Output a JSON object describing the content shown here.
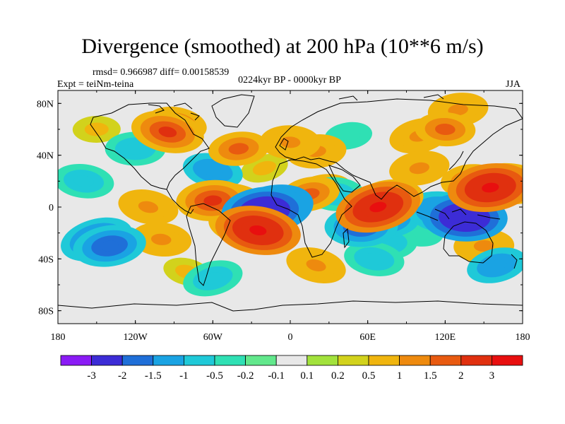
{
  "title": "Divergence (smoothed) at 200 hPa (10**6 m/s)",
  "stats": "rmsd= 0.966987 diff= 0.00158539",
  "experiment": "Expt = teiNm-teina",
  "period": "0224kyr BP - 0000kyr BP",
  "season": "JJA",
  "map": {
    "lat_range": [
      -90,
      90
    ],
    "lon_range": [
      -180,
      180
    ],
    "y_ticks": [
      "80N",
      "40N",
      "0",
      "40S",
      "80S"
    ],
    "y_tick_values": [
      80,
      40,
      0,
      -40,
      -80
    ],
    "x_ticks": [
      "180",
      "120W",
      "60W",
      "0",
      "60E",
      "120E",
      "180"
    ],
    "x_tick_values": [
      -180,
      -120,
      -60,
      0,
      60,
      120,
      180
    ]
  },
  "colorbar": {
    "labels": [
      "-3",
      "-2",
      "-1.5",
      "-1",
      "-0.5",
      "-0.2",
      "-0.1",
      "0.1",
      "0.2",
      "0.5",
      "1",
      "1.5",
      "2",
      "3"
    ],
    "colors": [
      "#8a1bf5",
      "#3c2cd6",
      "#1f6fd8",
      "#1aa3e3",
      "#1fc9d8",
      "#2fe0b4",
      "#62e88c",
      "#e8e8e8",
      "#a2e23c",
      "#d2d21c",
      "#f0b50e",
      "#ee8a0e",
      "#e85a10",
      "#e0300f",
      "#e80f0f"
    ]
  },
  "anomalies": [
    {
      "lon": -15,
      "lat": -2,
      "value": -3
    },
    {
      "lon": -20,
      "lat": -3,
      "value": -3
    },
    {
      "lon": 72,
      "lat": -8,
      "value": -2
    },
    {
      "lon": 135,
      "lat": -8,
      "value": -3
    },
    {
      "lon": 118,
      "lat": -4,
      "value": -2
    },
    {
      "lon": -150,
      "lat": -25,
      "value": -2
    },
    {
      "lon": -140,
      "lat": -30,
      "value": -2
    },
    {
      "lon": 55,
      "lat": -15,
      "value": -2
    },
    {
      "lon": -60,
      "lat": 28,
      "value": -1.5
    },
    {
      "lon": 15,
      "lat": 10,
      "value": 1.5
    },
    {
      "lon": 25,
      "lat": 12,
      "value": 1
    },
    {
      "lon": 75,
      "lat": -28,
      "value": -1
    },
    {
      "lon": 35,
      "lat": 10,
      "value": -1
    },
    {
      "lon": -35,
      "lat": -13,
      "value": 2
    },
    {
      "lon": -25,
      "lat": -18,
      "value": 3
    },
    {
      "lon": -42,
      "lat": 2,
      "value": 2
    },
    {
      "lon": 68,
      "lat": 0,
      "value": 3
    },
    {
      "lon": 75,
      "lat": 5,
      "value": 2
    },
    {
      "lon": -60,
      "lat": 5,
      "value": 2
    },
    {
      "lon": -110,
      "lat": 0,
      "value": 1
    },
    {
      "lon": 155,
      "lat": 15,
      "value": 3
    },
    {
      "lon": 170,
      "lat": 18,
      "value": 2
    },
    {
      "lon": 140,
      "lat": 20,
      "value": 1.5
    },
    {
      "lon": 120,
      "lat": 60,
      "value": 1.5
    },
    {
      "lon": 100,
      "lat": 55,
      "value": 1
    },
    {
      "lon": -95,
      "lat": 58,
      "value": 2
    },
    {
      "lon": -88,
      "lat": 64,
      "value": 1.5
    },
    {
      "lon": 20,
      "lat": 43,
      "value": 1
    },
    {
      "lon": 0,
      "lat": 50,
      "value": 1
    },
    {
      "lon": 65,
      "lat": -40,
      "value": -1
    },
    {
      "lon": 160,
      "lat": -45,
      "value": -1.5
    },
    {
      "lon": -60,
      "lat": -55,
      "value": -1
    },
    {
      "lon": 130,
      "lat": 75,
      "value": 1
    },
    {
      "lon": -40,
      "lat": 45,
      "value": 1.5
    },
    {
      "lon": -120,
      "lat": 45,
      "value": -1
    },
    {
      "lon": -160,
      "lat": 20,
      "value": -1
    },
    {
      "lon": 20,
      "lat": -45,
      "value": 1
    },
    {
      "lon": 100,
      "lat": 30,
      "value": 1
    },
    {
      "lon": -20,
      "lat": 30,
      "value": 0.5
    },
    {
      "lon": 45,
      "lat": 55,
      "value": -0.5
    },
    {
      "lon": -150,
      "lat": 60,
      "value": 0.5
    },
    {
      "lon": 150,
      "lat": -30,
      "value": 1
    },
    {
      "lon": -100,
      "lat": -25,
      "value": 1
    },
    {
      "lon": 100,
      "lat": -20,
      "value": -0.5
    },
    {
      "lon": -80,
      "lat": -50,
      "value": 0.5
    }
  ]
}
